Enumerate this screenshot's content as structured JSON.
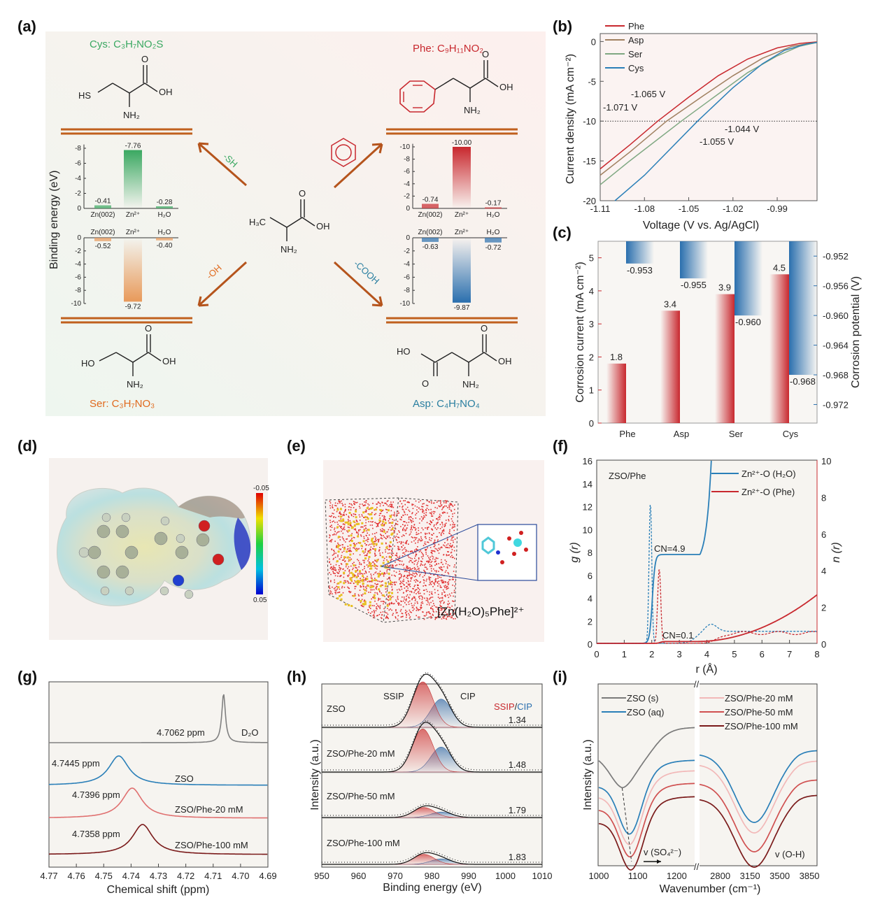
{
  "panel_labels": [
    "(a)",
    "(b)",
    "(c)",
    "(d)",
    "(e)",
    "(f)",
    "(g)",
    "(h)",
    "(i)"
  ],
  "colors": {
    "accent_orange": "#b5541c",
    "red": "#c8282e",
    "blue": "#2a6fae",
    "green": "#3aa861",
    "orange": "#e8995a",
    "gray": "#808080"
  },
  "panel_a": {
    "cys_formula": "Cys: C₃H₇NO₂S",
    "phe_formula": "Phe: C₉H₁₁NO₂",
    "ser_formula": "Ser: C₃H₇NO₃",
    "asp_formula": "Asp: C₄H₇NO₄",
    "atoms": {
      "cys": {
        "side": "HS",
        "o": "O",
        "oh": "OH",
        "nh2": "NH₂"
      },
      "phe": {
        "o": "O",
        "oh": "OH",
        "nh2": "NH₂"
      },
      "center": {
        "side": "H₃C",
        "o": "O",
        "oh": "OH",
        "nh2": "NH₂"
      },
      "ser": {
        "side": "HO",
        "o": "O",
        "oh": "OH",
        "nh2": "NH₂"
      },
      "asp": {
        "side": "HO",
        "o2": "O",
        "o": "O",
        "oh": "OH",
        "nh2": "NH₂"
      }
    },
    "arrow_labels": {
      "sh": "-SH",
      "oh": "-OH",
      "cooh": "-COOH",
      "benzene": "benzene-icon"
    },
    "ylabel": "Binding energy (eV)"
  },
  "panel_d": {
    "colorbar_max": "-0.05",
    "colorbar_min": "0.05"
  },
  "panel_e": {
    "complex_label": "[Zn(H₂O)₅Phe]²⁺"
  },
  "chart_data": [
    {
      "panel": "a",
      "type": "bar",
      "title": "Cys",
      "categories": [
        "Zn(002)",
        "Zn²⁺",
        "H₂O"
      ],
      "values": [
        -0.41,
        -7.76,
        -0.28
      ],
      "labels": [
        "-0.41",
        "-7.76",
        "-0.28"
      ],
      "ylim": [
        0,
        -8.5
      ],
      "ticks": [
        "0",
        "-2",
        "-4",
        "-6",
        "-8"
      ],
      "color": "#3aa861"
    },
    {
      "panel": "a",
      "type": "bar",
      "title": "Ser",
      "categories": [
        "Zn(002)",
        "Zn²⁺",
        "H₂O"
      ],
      "values": [
        -0.52,
        -9.72,
        -0.4
      ],
      "labels": [
        "-0.52",
        "-9.72",
        "-0.40"
      ],
      "ylim": [
        0,
        -10
      ],
      "ticks": [
        "0",
        "-2",
        "-4",
        "-6",
        "-8",
        "-10"
      ],
      "color": "#e8995a"
    },
    {
      "panel": "a",
      "type": "bar",
      "title": "Phe",
      "categories": [
        "Zn(002)",
        "Zn²⁺",
        "H₂O"
      ],
      "values": [
        -0.74,
        -10.0,
        -0.17
      ],
      "labels": [
        "-0.74",
        "-10.00",
        "-0.17"
      ],
      "ylim": [
        0,
        -10.5
      ],
      "ticks": [
        "0",
        "-2",
        "-4",
        "-6",
        "-8",
        "-10"
      ],
      "color": "#c8282e"
    },
    {
      "panel": "a",
      "type": "bar",
      "title": "Asp",
      "categories": [
        "Zn(002)",
        "Zn²⁺",
        "H₂O"
      ],
      "values": [
        -0.63,
        -9.87,
        -0.72
      ],
      "labels": [
        "-0.63",
        "-9.87",
        "-0.72"
      ],
      "ylim": [
        0,
        -10
      ],
      "ticks": [
        "0",
        "-2",
        "-4",
        "-6",
        "-8",
        "-10"
      ],
      "color": "#2a6fae"
    },
    {
      "panel": "b",
      "type": "line",
      "xlabel": "Voltage (V vs. Ag/AgCl)",
      "ylabel": "Current density (mA cm⁻²)",
      "xlim": [
        -1.11,
        -0.963
      ],
      "ylim": [
        -20,
        1
      ],
      "xticks": [
        -1.11,
        -1.08,
        -1.05,
        -1.02,
        -0.99
      ],
      "xtick_labels": [
        "-1.11",
        "-1.08",
        "-1.05",
        "-1.02",
        "-0.99"
      ],
      "yticks": [
        0,
        -5,
        -10,
        -15,
        -20
      ],
      "ytick_labels": [
        "0",
        "-5",
        "-10",
        "-15",
        "-20"
      ],
      "legend": "top-left",
      "reference_line": -10,
      "series": [
        {
          "name": "Phe",
          "color": "#c8282e",
          "points": [
            [
              -1.11,
              -16
            ],
            [
              -1.09,
              -13
            ],
            [
              -1.071,
              -10
            ],
            [
              -1.05,
              -7
            ],
            [
              -1.03,
              -4.3
            ],
            [
              -1.01,
              -2.2
            ],
            [
              -0.99,
              -0.8
            ],
            [
              -0.975,
              -0.25
            ],
            [
              -0.963,
              -0.05
            ]
          ],
          "annotation": "-1.071 V"
        },
        {
          "name": "Asp",
          "color": "#a08060",
          "points": [
            [
              -1.11,
              -16.8
            ],
            [
              -1.09,
              -13.9
            ],
            [
              -1.065,
              -10
            ],
            [
              -1.04,
              -6.8
            ],
            [
              -1.02,
              -4.3
            ],
            [
              -1.0,
              -2.1
            ],
            [
              -0.98,
              -0.6
            ],
            [
              -0.963,
              -0.08
            ]
          ],
          "annotation": "-1.065 V"
        },
        {
          "name": "Ser",
          "color": "#7fa882",
          "points": [
            [
              -1.11,
              -18
            ],
            [
              -1.09,
              -15
            ],
            [
              -1.055,
              -10
            ],
            [
              -1.03,
              -6.6
            ],
            [
              -1.01,
              -3.9
            ],
            [
              -0.99,
              -1.8
            ],
            [
              -0.975,
              -0.6
            ],
            [
              -0.963,
              -0.12
            ]
          ],
          "annotation": "-1.055 V"
        },
        {
          "name": "Cys",
          "color": "#2a7fb8",
          "points": [
            [
              -1.1,
              -20
            ],
            [
              -1.08,
              -16.8
            ],
            [
              -1.044,
              -10
            ],
            [
              -1.02,
              -5.8
            ],
            [
              -1.0,
              -2.8
            ],
            [
              -0.985,
              -1.1
            ],
            [
              -0.97,
              -0.3
            ],
            [
              -0.963,
              -0.12
            ]
          ],
          "annotation": "-1.044 V"
        }
      ]
    },
    {
      "panel": "c",
      "type": "bar",
      "categories": [
        "Phe",
        "Asp",
        "Ser",
        "Cys"
      ],
      "ylabel": "Corrosion current (mA cm⁻²)",
      "y2label": "Corrosion potential (V)",
      "ylim": [
        0,
        5.5
      ],
      "y2lim": [
        -0.9745,
        -0.95
      ],
      "yticks": [
        "0",
        "1",
        "2",
        "3",
        "4",
        "5"
      ],
      "y2ticks": [
        "-0.952",
        "-0.956",
        "-0.960",
        "-0.964",
        "-0.968",
        "-0.972"
      ],
      "series": [
        {
          "name": "Corrosion current",
          "values": [
            1.8,
            3.4,
            3.9,
            4.5
          ],
          "labels": [
            "1.8",
            "3.4",
            "3.9",
            "4.5"
          ],
          "color": "#c8282e"
        },
        {
          "name": "Corrosion potential",
          "values": [
            -0.953,
            -0.955,
            -0.96,
            -0.968
          ],
          "labels": [
            "-0.953",
            "-0.955",
            "-0.960",
            "-0.968"
          ],
          "color": "#2a6fae"
        }
      ]
    },
    {
      "panel": "f",
      "type": "line",
      "annotation_title": "ZSO/Phe",
      "xlabel": "r (Å)",
      "ylabel": "g (r)",
      "y2label": "n (r)",
      "xlim": [
        0,
        8
      ],
      "ylim": [
        0,
        16
      ],
      "y2lim": [
        0,
        10
      ],
      "xticks": [
        "0",
        "1",
        "2",
        "3",
        "4",
        "5",
        "6",
        "7",
        "8"
      ],
      "yticks": [
        "0",
        "2",
        "4",
        "6",
        "8",
        "10",
        "12",
        "14",
        "16"
      ],
      "y2ticks": [
        "0",
        "2",
        "4",
        "6",
        "8",
        "10"
      ],
      "legend": [
        "Zn²⁺-O (H₂O)",
        "Zn²⁺-O (Phe)"
      ],
      "annotations": [
        "CN=4.9",
        "CN=0.1"
      ],
      "series": [
        {
          "name": "Zn²⁺-O (H₂O)",
          "kind": "g(r)",
          "color": "#2a7fb8",
          "first_peak": [
            1.95,
            12.3
          ],
          "second_peak": [
            4.15,
            1.7
          ],
          "plateau": 1.05
        },
        {
          "name": "Zn²⁺-O (Phe)",
          "kind": "g(r)",
          "color": "#c8282e",
          "first_peak": [
            2.27,
            6.5
          ],
          "plateau": 0.9
        },
        {
          "name": "Zn²⁺-O (H₂O)",
          "kind": "n(r)",
          "color": "#2a7fb8",
          "cn": 4.85
        },
        {
          "name": "Zn²⁺-O (Phe)",
          "kind": "n(r)",
          "color": "#c8282e",
          "cn": 0.1,
          "end_value": 2.65
        }
      ]
    },
    {
      "panel": "g",
      "type": "line",
      "xlabel": "Chemical shift (ppm)",
      "xlim": [
        4.77,
        4.69
      ],
      "xticks": [
        "4.77",
        "4.76",
        "4.75",
        "4.74",
        "4.73",
        "4.72",
        "4.71",
        "4.70",
        "4.69"
      ],
      "series": [
        {
          "name": "D₂O",
          "peak": 4.7062,
          "label": "4.7062 ppm",
          "color": "#808080"
        },
        {
          "name": "ZSO",
          "peak": 4.7445,
          "label": "4.7445 ppm",
          "color": "#2a7fb8"
        },
        {
          "name": "ZSO/Phe-20 mM",
          "peak": 4.7396,
          "label": "4.7396 ppm",
          "color": "#e07070"
        },
        {
          "name": "ZSO/Phe-100 mM",
          "peak": 4.7358,
          "label": "4.7358 ppm",
          "color": "#7a1a1a"
        }
      ]
    },
    {
      "panel": "h",
      "type": "line",
      "xlabel": "Binding energy (eV)",
      "ylabel": "Intensity (a.u.)",
      "xlim": [
        950,
        1010
      ],
      "xticks": [
        "950",
        "960",
        "970",
        "980",
        "990",
        "1000",
        "1010"
      ],
      "components": [
        "SSIP",
        "CIP"
      ],
      "ratio_label": [
        "SSIP",
        "/",
        "CIP"
      ],
      "series": [
        {
          "name": "ZSO",
          "ratio": "1.34",
          "ssip": [
            977.5,
            1.0
          ],
          "cip": [
            982.5,
            0.62
          ]
        },
        {
          "name": "ZSO/Phe-20 mM",
          "ratio": "1.48",
          "ssip": [
            977.5,
            0.95
          ],
          "cip": [
            982.5,
            0.55
          ]
        },
        {
          "name": "ZSO/Phe-50 mM",
          "ratio": "1.79",
          "ssip": [
            977.8,
            0.22
          ],
          "cip": [
            982.5,
            0.12
          ]
        },
        {
          "name": "ZSO/Phe-100 mM",
          "ratio": "1.83",
          "ssip": [
            977.8,
            0.22
          ],
          "cip": [
            982.5,
            0.12
          ]
        }
      ]
    },
    {
      "panel": "i",
      "type": "line",
      "xlabel": "Wavenumber (cm⁻¹)",
      "ylabel": "Intensity (a.u.)",
      "xlim_left": [
        1000,
        1246
      ],
      "xlim_right": [
        2556,
        3940
      ],
      "xticks_left": [
        "1000",
        "1100",
        "1200"
      ],
      "xticks_right": [
        "2800",
        "3150",
        "3500",
        "3850"
      ],
      "annotations": [
        "v (SO₄²⁻)",
        "v (O-H)"
      ],
      "series": [
        {
          "name": "ZSO (s)",
          "color": "#7a7a7a",
          "so4_min": 1060
        },
        {
          "name": "ZSO (aq)",
          "color": "#2a7fb8",
          "so4_min": 1080,
          "oh_min": 3200
        },
        {
          "name": "ZSO/Phe-20 mM",
          "color": "#f2b8b8",
          "so4_min": 1080,
          "oh_min": 3200
        },
        {
          "name": "ZSO/Phe-50 mM",
          "color": "#d05050",
          "so4_min": 1082,
          "oh_min": 3200
        },
        {
          "name": "ZSO/Phe-100 mM",
          "color": "#7a1a1a",
          "so4_min": 1084,
          "oh_min": 3200
        }
      ]
    }
  ]
}
